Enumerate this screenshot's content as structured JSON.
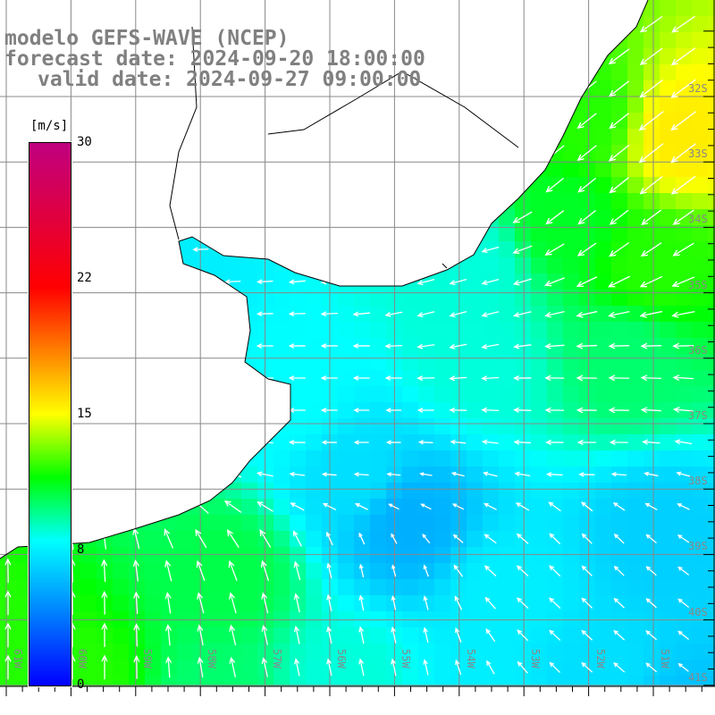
{
  "header": {
    "line1": "modelo GEFS-WAVE (NCEP)",
    "line2": "forecast date: 2024-09-20 18:00:00",
    "line3": "valid date: 2024-09-27 09:00:00"
  },
  "colorbar": {
    "unit": "[m/s]",
    "ticks": [
      "30",
      "22",
      "15",
      "8",
      "0"
    ],
    "tick_values": [
      30,
      22,
      15,
      8,
      0
    ],
    "colors": [
      "#0000ff",
      "#0080ff",
      "#00ffff",
      "#00ff00",
      "#ffff00",
      "#ff8000",
      "#ff0000",
      "#c00080"
    ],
    "color_stops": [
      0,
      4,
      8,
      11.5,
      15,
      18.5,
      22,
      30
    ]
  },
  "axes": {
    "longitudes": [
      "61W",
      "60W",
      "59W",
      "58W",
      "57W",
      "56W",
      "55W",
      "54W",
      "53W",
      "52W",
      "51W"
    ],
    "latitudes": [
      "32S",
      "33S",
      "34S",
      "35S",
      "36S",
      "37S",
      "38S",
      "39S",
      "40S",
      "41S"
    ]
  },
  "field": {
    "variable": "wind speed",
    "control_points": [
      {
        "lon": -54.8,
        "lat": -38.5,
        "speed": 5.5
      },
      {
        "lon": -55.6,
        "lat": -37.8,
        "speed": 7
      },
      {
        "lon": -56.6,
        "lat": -36.6,
        "speed": 8
      },
      {
        "lon": -53.3,
        "lat": -39.6,
        "speed": 7.5
      },
      {
        "lon": -51.9,
        "lat": -40.9,
        "speed": 7
      },
      {
        "lon": -50.9,
        "lat": -38.7,
        "speed": 6.5
      },
      {
        "lon": -61.6,
        "lat": -40.3,
        "speed": 12
      },
      {
        "lon": -59.9,
        "lat": -41.0,
        "speed": 12
      },
      {
        "lon": -57.8,
        "lat": -41.3,
        "speed": 10
      },
      {
        "lon": -55.7,
        "lat": -41.0,
        "speed": 8.5
      },
      {
        "lon": -53.6,
        "lat": -41.3,
        "speed": 7.5
      },
      {
        "lon": -50.6,
        "lat": -41.7,
        "speed": 6
      },
      {
        "lon": -50.6,
        "lat": -32.6,
        "speed": 15.5
      },
      {
        "lon": -52.0,
        "lat": -32.3,
        "speed": 12
      },
      {
        "lon": -52.4,
        "lat": -33.9,
        "speed": 11
      },
      {
        "lon": -51.0,
        "lat": -34.6,
        "speed": 12
      },
      {
        "lon": -51.4,
        "lat": -36.0,
        "speed": 10
      },
      {
        "lon": -53.8,
        "lat": -34.6,
        "speed": 8.5
      },
      {
        "lon": -53.7,
        "lat": -36.0,
        "speed": 8.5
      },
      {
        "lon": -58.3,
        "lat": -34.6,
        "speed": 7.5
      },
      {
        "lon": -57.6,
        "lat": -39.3,
        "speed": 10.5
      }
    ],
    "direction_points": [
      {
        "lon": -60.5,
        "lat": -40.9,
        "u": 0,
        "v": -1
      },
      {
        "lon": -55.6,
        "lat": -40.2,
        "u": -0.2,
        "v": -1
      },
      {
        "lon": -52.1,
        "lat": -38.8,
        "u": -0.7,
        "v": -0.7
      },
      {
        "lon": -52.1,
        "lat": -37.4,
        "u": -1,
        "v": 0
      },
      {
        "lon": -55.6,
        "lat": -36.6,
        "u": -1,
        "v": 0
      },
      {
        "lon": -52.1,
        "lat": -33.1,
        "u": -0.75,
        "v": 0.6
      },
      {
        "lon": -54.2,
        "lat": -34.6,
        "u": -0.95,
        "v": 0.25
      }
    ]
  }
}
